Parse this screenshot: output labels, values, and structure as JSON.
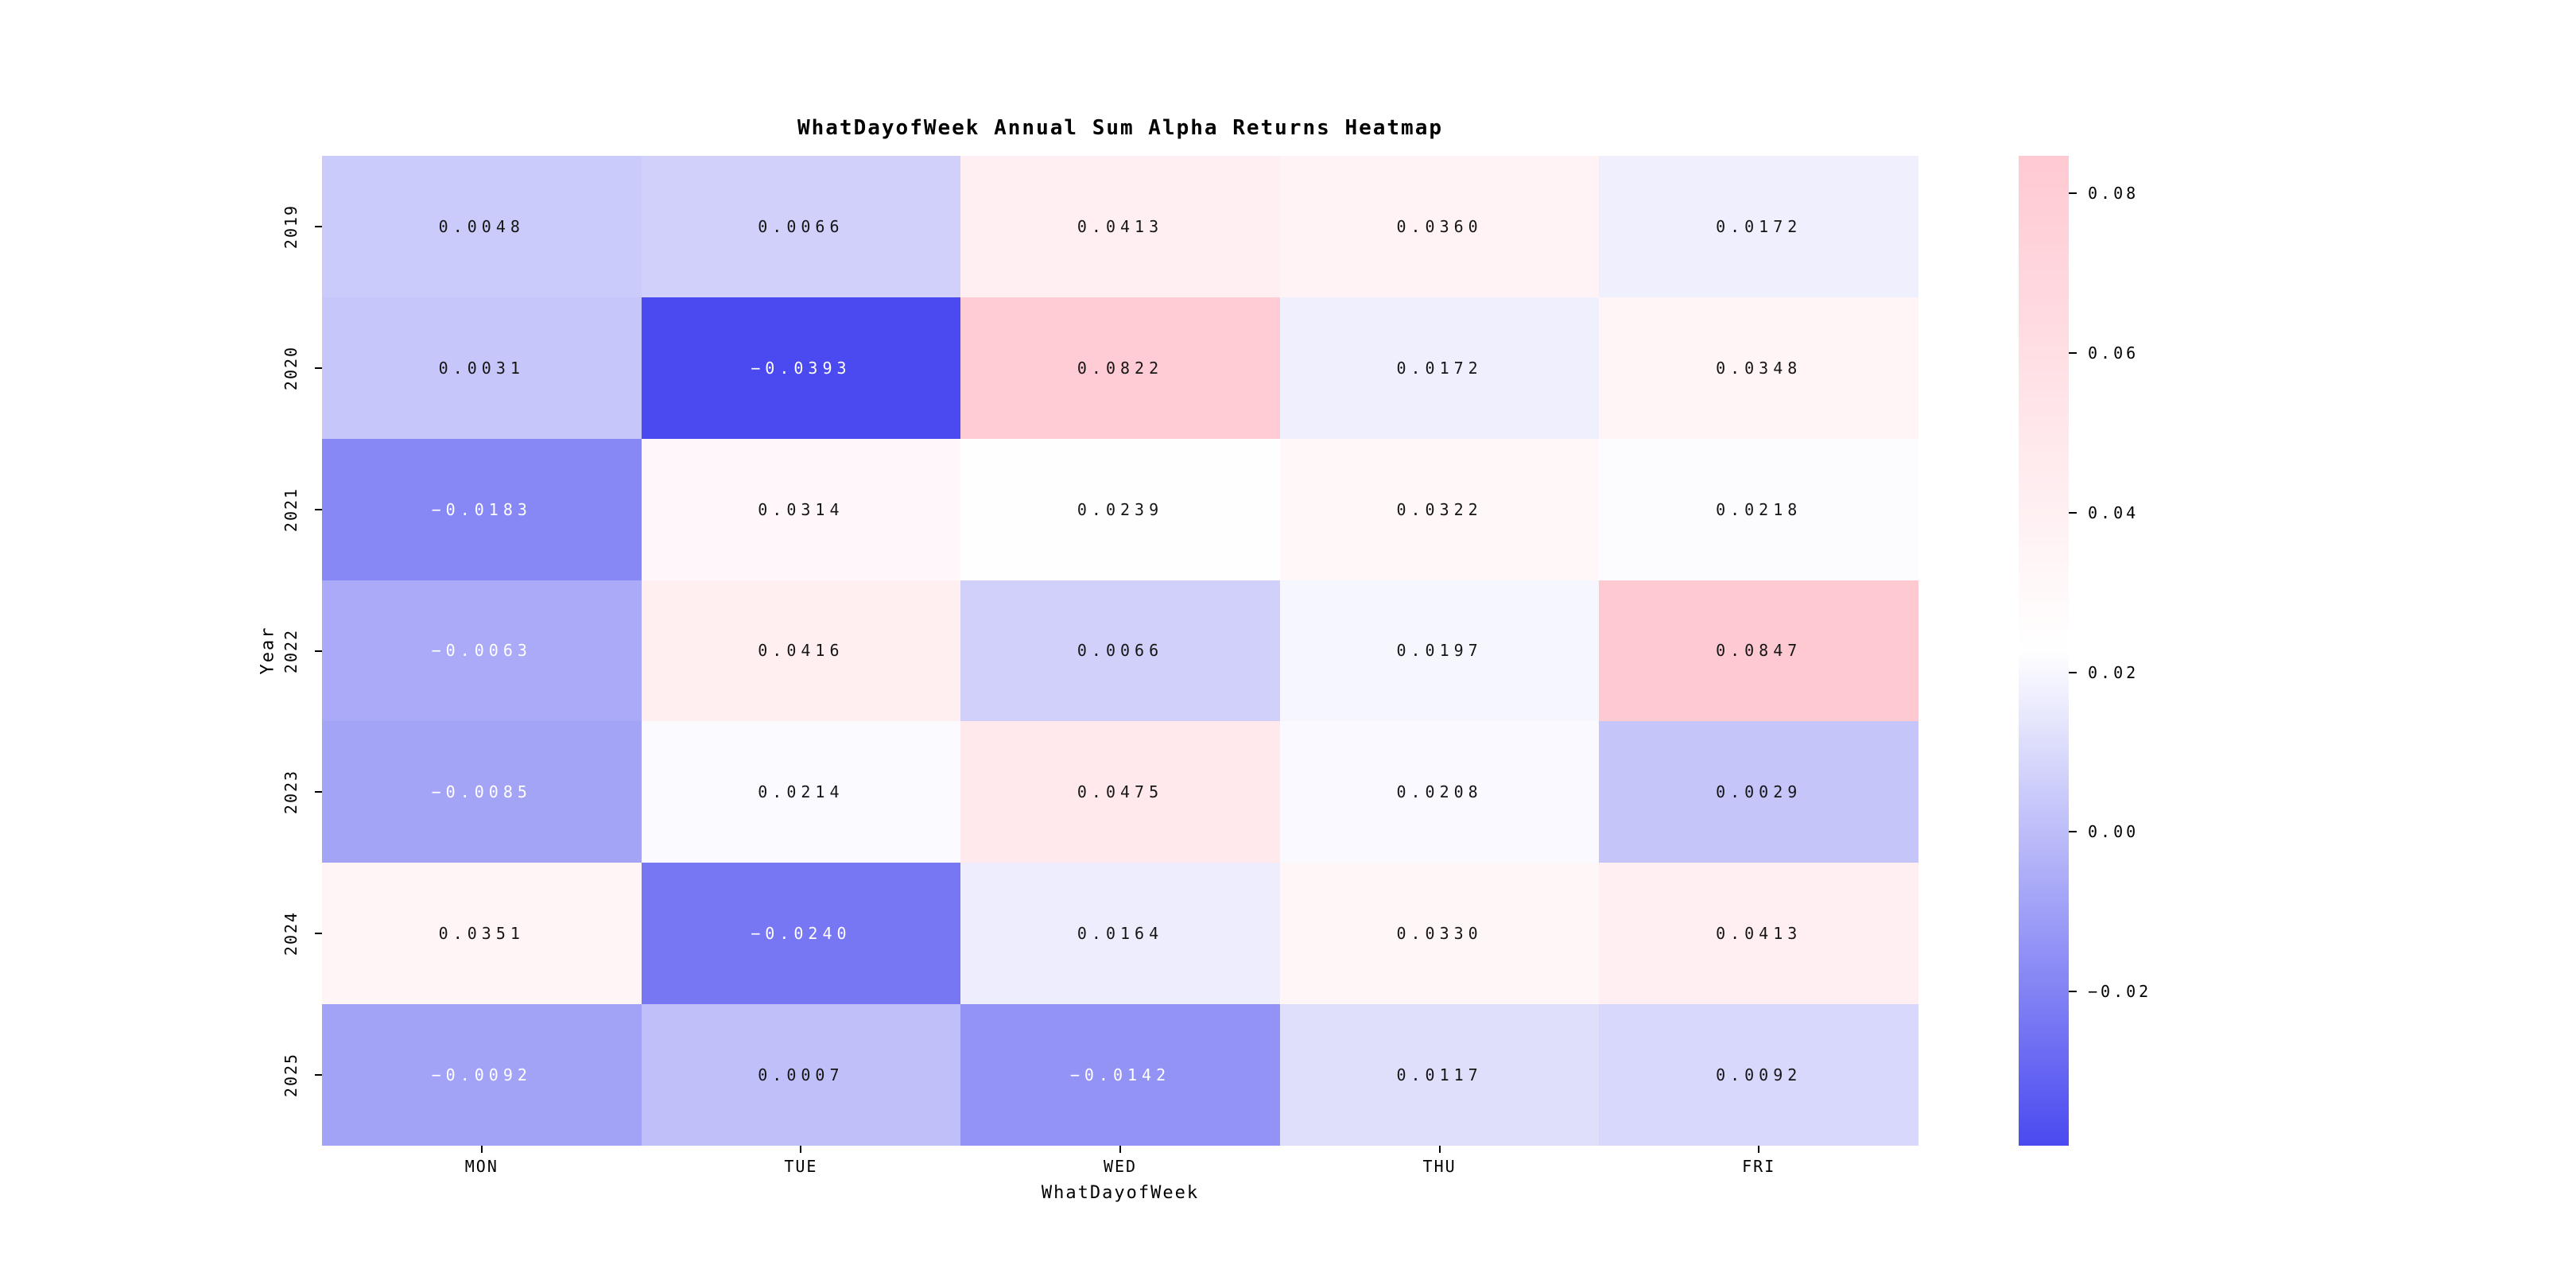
{
  "title": "WhatDayofWeek Annual Sum Alpha Returns Heatmap",
  "colors": {
    "background": "#ffffff",
    "cmap_low": "#4a4af0",
    "cmap_mid": "#ffffff",
    "cmap_high": "#ffc9d2",
    "annot_dark": "#151515",
    "annot_light": "#ffffff",
    "tick_color": "#000000"
  },
  "chart_data": {
    "type": "heatmap",
    "title": "WhatDayofWeek Annual Sum Alpha Returns Heatmap",
    "xlabel": "WhatDayofWeek",
    "ylabel": "Year",
    "columns": [
      "MON",
      "TUE",
      "WED",
      "THU",
      "FRI"
    ],
    "rows": [
      "2019",
      "2020",
      "2021",
      "2022",
      "2023",
      "2024",
      "2025"
    ],
    "matrix": [
      [
        0.0048,
        0.0066,
        0.0413,
        0.036,
        0.0172
      ],
      [
        0.0031,
        -0.0393,
        0.0822,
        0.0172,
        0.0348
      ],
      [
        -0.0183,
        0.0314,
        0.0239,
        0.0322,
        0.0218
      ],
      [
        -0.0063,
        0.0416,
        0.0066,
        0.0197,
        0.0847
      ],
      [
        -0.0085,
        0.0214,
        0.0475,
        0.0208,
        0.0029
      ],
      [
        0.0351,
        -0.024,
        0.0164,
        0.033,
        0.0413
      ],
      [
        -0.0092,
        0.0007,
        -0.0142,
        0.0117,
        0.0092
      ]
    ],
    "annot_decimals": 4,
    "vmin": -0.0393,
    "vmax": 0.0847,
    "grid": false,
    "colorbar": {
      "position": "right",
      "ticks": [
        {
          "value": 0.08,
          "label": "0.08"
        },
        {
          "value": 0.06,
          "label": "0.06"
        },
        {
          "value": 0.04,
          "label": "0.04"
        },
        {
          "value": 0.02,
          "label": "0.02"
        },
        {
          "value": 0.0,
          "label": "0.00"
        },
        {
          "value": -0.02,
          "label": "−0.02"
        }
      ]
    }
  }
}
